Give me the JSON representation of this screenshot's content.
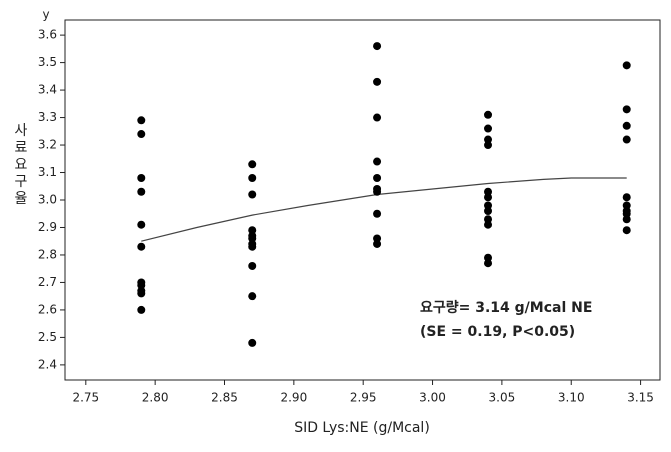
{
  "chart_data": {
    "type": "scatter",
    "y_axis_label": "y",
    "y_title": "사료요구율",
    "x_title": "SID Lys:NE (g/Mcal)",
    "annotations": [
      "요구량= 3.14 g/Mcal NE",
      "(SE = 0.19,  P<0.05)"
    ],
    "color": "#000000",
    "x": [
      2.79,
      2.79,
      2.79,
      2.79,
      2.79,
      2.79,
      2.79,
      2.79,
      2.79,
      2.79,
      2.79,
      2.87,
      2.87,
      2.87,
      2.87,
      2.87,
      2.87,
      2.87,
      2.87,
      2.87,
      2.87,
      2.87,
      2.96,
      2.96,
      2.96,
      2.96,
      2.96,
      2.96,
      2.96,
      2.96,
      2.96,
      2.96,
      3.04,
      3.04,
      3.04,
      3.04,
      3.04,
      3.04,
      3.04,
      3.04,
      3.04,
      3.04,
      3.04,
      3.04,
      3.14,
      3.14,
      3.14,
      3.14,
      3.14,
      3.14,
      3.14,
      3.14,
      3.14,
      3.14
    ],
    "values": [
      3.29,
      3.24,
      3.08,
      3.03,
      2.91,
      2.83,
      2.7,
      2.69,
      2.67,
      2.66,
      2.6,
      3.13,
      3.08,
      3.02,
      2.89,
      2.87,
      2.86,
      2.84,
      2.83,
      2.76,
      2.65,
      2.48,
      3.56,
      3.43,
      3.3,
      3.14,
      3.08,
      3.04,
      3.03,
      2.95,
      2.86,
      2.84,
      3.31,
      3.26,
      3.22,
      3.2,
      3.03,
      3.01,
      2.98,
      2.96,
      2.93,
      2.91,
      2.79,
      2.77,
      3.49,
      3.33,
      3.27,
      3.22,
      3.01,
      2.98,
      2.96,
      2.95,
      2.93,
      2.89
    ],
    "curve": {
      "color": "#444444",
      "x": [
        2.79,
        2.83,
        2.87,
        2.91,
        2.96,
        3.0,
        3.04,
        3.08,
        3.1,
        3.14
      ],
      "y": [
        2.85,
        2.9,
        2.945,
        2.98,
        3.02,
        3.04,
        3.06,
        3.075,
        3.08,
        3.08
      ]
    },
    "xlim": [
      2.735,
      3.164
    ],
    "ylim": [
      2.345,
      3.655
    ],
    "xticks": [
      {
        "value": 2.75,
        "label": "2.75"
      },
      {
        "value": 2.8,
        "label": "2.80"
      },
      {
        "value": 2.85,
        "label": "2.85"
      },
      {
        "value": 2.9,
        "label": "2.90"
      },
      {
        "value": 2.95,
        "label": "2.95"
      },
      {
        "value": 3.0,
        "label": "3.00"
      },
      {
        "value": 3.05,
        "label": "3.05"
      },
      {
        "value": 3.1,
        "label": "3.10"
      },
      {
        "value": 3.15,
        "label": "3.15"
      }
    ],
    "yticks": [
      2.4,
      2.5,
      2.6,
      2.7,
      2.8,
      2.9,
      {
        "value": 3.0,
        "label": "3.0"
      },
      3.1,
      3.2,
      3.3,
      3.4,
      3.5,
      3.6
    ]
  }
}
